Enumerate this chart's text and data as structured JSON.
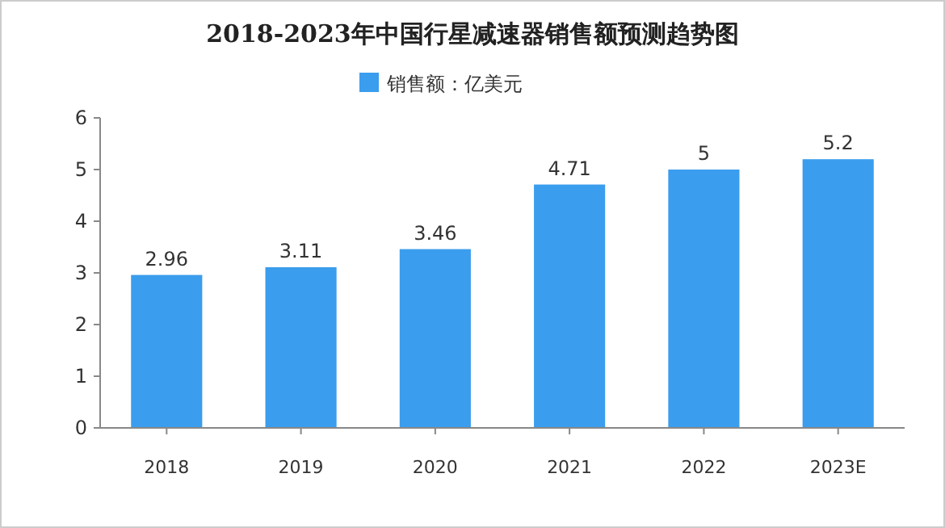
{
  "chart_data": {
    "type": "bar",
    "title": "2018-2023年中国行星减速器销售额预测趋势图",
    "categories": [
      "2018",
      "2019",
      "2020",
      "2021",
      "2022",
      "2023E"
    ],
    "series": [
      {
        "name": "销售额：亿美元",
        "color": "#3b9ded",
        "values": [
          2.96,
          3.11,
          3.46,
          4.71,
          5,
          5.2
        ]
      }
    ],
    "ylim": [
      0,
      6
    ],
    "yticks": [
      0,
      1,
      2,
      3,
      4,
      5,
      6
    ],
    "data_labels": true,
    "legend": "top",
    "grid": false
  }
}
